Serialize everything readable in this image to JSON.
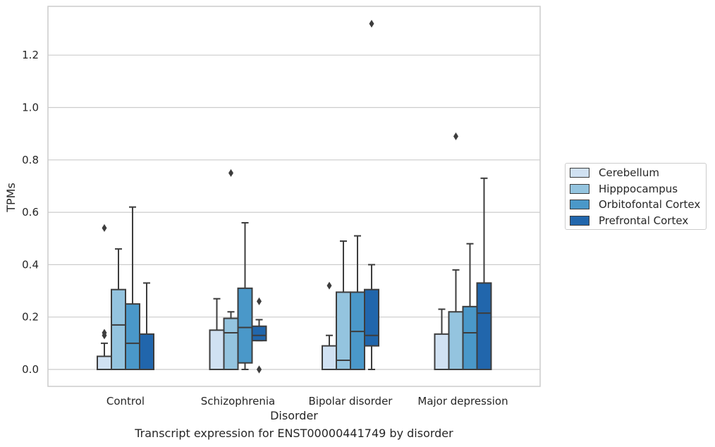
{
  "chart_data": {
    "type": "boxplot",
    "title": "",
    "caption": "Transcript expression for ENST00000441749 by disorder",
    "xlabel": "Disorder",
    "ylabel": "TPMs",
    "ylim": [
      -0.065,
      1.39
    ],
    "yticks": [
      "0.0",
      "0.2",
      "0.4",
      "0.6",
      "0.8",
      "1.0",
      "1.2"
    ],
    "categories": [
      "Control",
      "Schizophrenia",
      "Bipolar disorder",
      "Major depression"
    ],
    "grid": "horizontal",
    "legend_position": "right",
    "series": [
      {
        "name": "Cerebellum",
        "color": "#d0e1f2",
        "boxes": [
          {
            "whislo": 0.0,
            "q1": 0.0,
            "med": 0.0,
            "q3": 0.05,
            "whishi": 0.1,
            "fliers": [
              0.13,
              0.14,
              0.54
            ]
          },
          {
            "whislo": 0.0,
            "q1": 0.0,
            "med": 0.0,
            "q3": 0.15,
            "whishi": 0.27,
            "fliers": []
          },
          {
            "whislo": 0.0,
            "q1": 0.0,
            "med": 0.0,
            "q3": 0.09,
            "whishi": 0.13,
            "fliers": [
              0.32
            ]
          },
          {
            "whislo": 0.0,
            "q1": 0.0,
            "med": 0.0,
            "q3": 0.135,
            "whishi": 0.23,
            "fliers": []
          }
        ]
      },
      {
        "name": "Hipppocampus",
        "color": "#94c4df",
        "boxes": [
          {
            "whislo": 0.0,
            "q1": 0.0,
            "med": 0.17,
            "q3": 0.305,
            "whishi": 0.46,
            "fliers": []
          },
          {
            "whislo": 0.0,
            "q1": 0.0,
            "med": 0.14,
            "q3": 0.195,
            "whishi": 0.22,
            "fliers": [
              0.75
            ]
          },
          {
            "whislo": 0.0,
            "q1": 0.0,
            "med": 0.035,
            "q3": 0.295,
            "whishi": 0.49,
            "fliers": []
          },
          {
            "whislo": 0.0,
            "q1": 0.0,
            "med": 0.0,
            "q3": 0.22,
            "whishi": 0.38,
            "fliers": [
              0.89
            ]
          }
        ]
      },
      {
        "name": "Orbitofontal Cortex",
        "color": "#4a98c9",
        "boxes": [
          {
            "whislo": 0.0,
            "q1": 0.0,
            "med": 0.1,
            "q3": 0.25,
            "whishi": 0.62,
            "fliers": []
          },
          {
            "whislo": 0.0,
            "q1": 0.025,
            "med": 0.16,
            "q3": 0.31,
            "whishi": 0.56,
            "fliers": []
          },
          {
            "whislo": 0.0,
            "q1": 0.0,
            "med": 0.145,
            "q3": 0.295,
            "whishi": 0.51,
            "fliers": []
          },
          {
            "whislo": 0.0,
            "q1": 0.0,
            "med": 0.14,
            "q3": 0.24,
            "whishi": 0.48,
            "fliers": []
          }
        ]
      },
      {
        "name": "Prefrontal Cortex",
        "color": "#2166ac",
        "boxes": [
          {
            "whislo": 0.0,
            "q1": 0.0,
            "med": 0.0,
            "q3": 0.135,
            "whishi": 0.33,
            "fliers": []
          },
          {
            "whislo": 0.11,
            "q1": 0.11,
            "med": 0.13,
            "q3": 0.165,
            "whishi": 0.19,
            "fliers": [
              0.0,
              0.0,
              0.26
            ]
          },
          {
            "whislo": 0.0,
            "q1": 0.09,
            "med": 0.13,
            "q3": 0.305,
            "whishi": 0.4,
            "fliers": [
              1.32
            ]
          },
          {
            "whislo": 0.0,
            "q1": 0.0,
            "med": 0.215,
            "q3": 0.33,
            "whishi": 0.73,
            "fliers": []
          }
        ]
      }
    ]
  }
}
